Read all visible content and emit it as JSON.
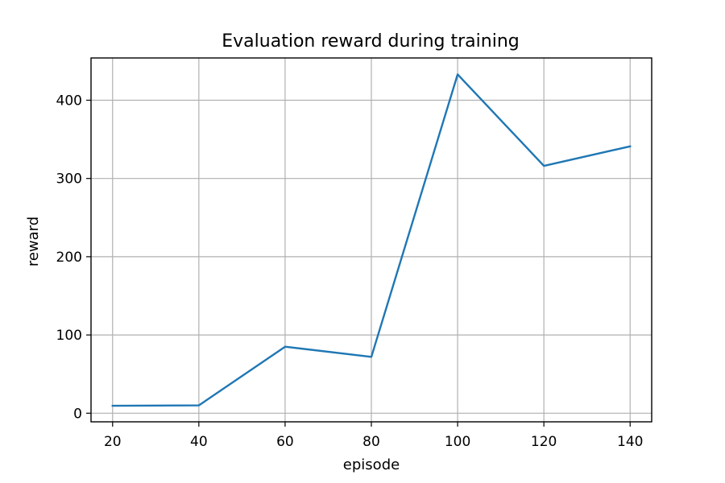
{
  "chart_data": {
    "type": "line",
    "title": "Evaluation reward during training",
    "xlabel": "episode",
    "ylabel": "reward",
    "xlim": [
      15,
      145
    ],
    "ylim": [
      -11,
      454
    ],
    "xticks": [
      20,
      40,
      60,
      80,
      100,
      120,
      140
    ],
    "yticks": [
      0,
      100,
      200,
      300,
      400
    ],
    "grid": true,
    "series": [
      {
        "color": "#1f77b4",
        "x": [
          20,
          40,
          60,
          80,
          100,
          120,
          140
        ],
        "y": [
          9.5,
          10,
          85,
          72,
          433,
          316,
          341
        ]
      }
    ]
  }
}
